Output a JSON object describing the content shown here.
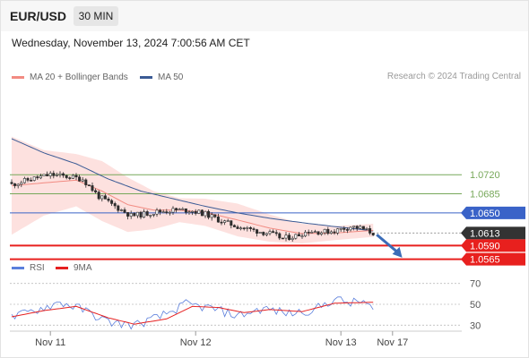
{
  "header": {
    "pair": "EUR/USD",
    "timeframe": "30 MIN"
  },
  "date_label": "Wednesday, November 13, 2024 7:00:56 AM CET",
  "credit": "Research © 2024 Trading Central",
  "colors": {
    "resistance": "#77a85a",
    "pivot": "#3a63c8",
    "support": "#e8201e",
    "last": "#333333",
    "ma20": "#f28b82",
    "band": "#fde1df",
    "ma50": "#3b5b95",
    "candle": "#2d2d2d",
    "rsi": "#5b7fdc",
    "rsi_ma": "#e62020",
    "arrow": "#3b6db8"
  },
  "chart_data": [
    {
      "type": "candlestick",
      "title": "EUR/USD",
      "interval": "30 MIN",
      "ylim": [
        1.0548,
        1.085
      ],
      "x_ticks": [
        "Nov 11",
        "Nov 12",
        "Nov 13",
        "Nov 17"
      ],
      "x_tick_index": [
        12,
        57,
        102,
        118
      ],
      "bar_count": 113,
      "legend": [
        {
          "name": "MA 20 + Bollinger Bands",
          "color": "#f28b82"
        },
        {
          "name": "MA 50",
          "color": "#3b5b95"
        }
      ],
      "levels": [
        {
          "label": "1.0720",
          "value": 1.072,
          "kind": "resistance"
        },
        {
          "label": "1.0685",
          "value": 1.0685,
          "kind": "resistance"
        },
        {
          "label": "1.0650",
          "value": 1.065,
          "kind": "pivot"
        },
        {
          "label": "1.0613",
          "value": 1.0613,
          "kind": "last"
        },
        {
          "label": "1.0590",
          "value": 1.059,
          "kind": "support"
        },
        {
          "label": "1.0565",
          "value": 1.0565,
          "kind": "support"
        }
      ],
      "close_anchors": [
        [
          0,
          1.0702
        ],
        [
          6,
          1.0712
        ],
        [
          12,
          1.072
        ],
        [
          18,
          1.0716
        ],
        [
          22,
          1.0712
        ],
        [
          27,
          1.068
        ],
        [
          32,
          1.0662
        ],
        [
          37,
          1.0645
        ],
        [
          40,
          1.0647
        ],
        [
          45,
          1.0652
        ],
        [
          50,
          1.0655
        ],
        [
          55,
          1.0655
        ],
        [
          60,
          1.0648
        ],
        [
          65,
          1.0635
        ],
        [
          70,
          1.0625
        ],
        [
          75,
          1.0618
        ],
        [
          80,
          1.0612
        ],
        [
          84,
          1.0603
        ],
        [
          88,
          1.0608
        ],
        [
          92,
          1.0617
        ],
        [
          96,
          1.0615
        ],
        [
          100,
          1.0617
        ],
        [
          105,
          1.0625
        ],
        [
          108,
          1.0622
        ],
        [
          112,
          1.0613
        ]
      ],
      "ma20_anchors": [
        [
          0,
          1.07
        ],
        [
          10,
          1.0705
        ],
        [
          20,
          1.071
        ],
        [
          28,
          1.069
        ],
        [
          36,
          1.0665
        ],
        [
          44,
          1.0655
        ],
        [
          52,
          1.0655
        ],
        [
          60,
          1.0651
        ],
        [
          70,
          1.0637
        ],
        [
          80,
          1.0622
        ],
        [
          90,
          1.0612
        ],
        [
          100,
          1.0613
        ],
        [
          112,
          1.0618
        ]
      ],
      "band_width_anchors": [
        [
          0,
          0.009
        ],
        [
          10,
          0.006
        ],
        [
          20,
          0.0048
        ],
        [
          28,
          0.0055
        ],
        [
          36,
          0.005
        ],
        [
          44,
          0.0035
        ],
        [
          52,
          0.0022
        ],
        [
          60,
          0.0025
        ],
        [
          70,
          0.003
        ],
        [
          80,
          0.0025
        ],
        [
          90,
          0.0018
        ],
        [
          100,
          0.0013
        ],
        [
          112,
          0.0012
        ]
      ],
      "ma50_anchors": [
        [
          0,
          1.0786
        ],
        [
          10,
          1.076
        ],
        [
          20,
          1.074
        ],
        [
          30,
          1.0712
        ],
        [
          40,
          1.069
        ],
        [
          50,
          1.0676
        ],
        [
          60,
          1.0662
        ],
        [
          70,
          1.065
        ],
        [
          80,
          1.064
        ],
        [
          90,
          1.0632
        ],
        [
          100,
          1.0625
        ],
        [
          112,
          1.0617
        ]
      ],
      "forecast": {
        "from": [
          112,
          1.061
        ],
        "to": [
          121,
          1.0568
        ]
      }
    },
    {
      "type": "line",
      "title": "RSI",
      "ylim": [
        20,
        80
      ],
      "y_ticks": [
        70,
        50,
        30
      ],
      "legend": [
        {
          "name": "RSI",
          "color": "#5b7fdc"
        },
        {
          "name": "9MA",
          "color": "#e62020"
        }
      ],
      "rsi_anchors": [
        [
          0,
          37
        ],
        [
          8,
          45
        ],
        [
          15,
          52
        ],
        [
          22,
          45
        ],
        [
          30,
          33
        ],
        [
          38,
          30
        ],
        [
          46,
          38
        ],
        [
          54,
          50
        ],
        [
          62,
          46
        ],
        [
          70,
          39
        ],
        [
          78,
          46
        ],
        [
          86,
          41
        ],
        [
          94,
          45
        ],
        [
          100,
          55
        ],
        [
          105,
          51
        ],
        [
          109,
          53
        ],
        [
          112,
          44
        ]
      ],
      "ma9_anchors": [
        [
          0,
          38
        ],
        [
          10,
          44
        ],
        [
          20,
          48
        ],
        [
          30,
          37
        ],
        [
          38,
          31
        ],
        [
          48,
          36
        ],
        [
          56,
          48
        ],
        [
          64,
          47
        ],
        [
          72,
          42
        ],
        [
          80,
          45
        ],
        [
          90,
          43
        ],
        [
          100,
          51
        ],
        [
          112,
          52
        ]
      ]
    }
  ]
}
